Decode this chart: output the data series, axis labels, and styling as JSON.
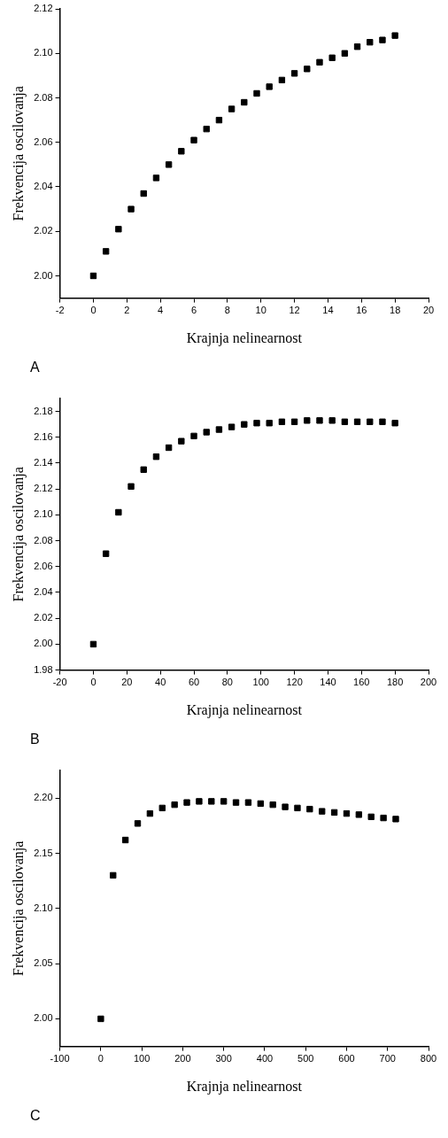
{
  "chart_data": [
    {
      "type": "scatter",
      "xlabel": "Krajnja nelinearnost",
      "ylabel": "Frekvencija oscilovanja",
      "annotations": [
        "A"
      ],
      "marker": "square",
      "grid": false,
      "x": [
        0,
        0.75,
        1.5,
        2.25,
        3,
        3.75,
        4.5,
        5.25,
        6,
        6.75,
        7.5,
        8.25,
        9,
        9.75,
        10.5,
        11.25,
        12,
        12.75,
        13.5,
        14.25,
        15,
        15.75,
        16.5,
        17.25,
        18
      ],
      "series": [
        {
          "color": "#000000",
          "values": [
            2.0,
            2.011,
            2.021,
            2.03,
            2.037,
            2.044,
            2.05,
            2.056,
            2.061,
            2.066,
            2.07,
            2.075,
            2.078,
            2.082,
            2.085,
            2.088,
            2.091,
            2.093,
            2.096,
            2.098,
            2.1,
            2.103,
            2.105,
            2.106,
            2.108
          ]
        }
      ],
      "xlim": [
        -2,
        20
      ],
      "xticks": [
        -2,
        0,
        2,
        4,
        6,
        8,
        10,
        12,
        14,
        16,
        18,
        20
      ],
      "ylim": [
        1.99,
        2.12
      ],
      "yticks": [
        {
          "value": 2,
          "label": "2.00"
        },
        2.02,
        2.04,
        2.06,
        2.08,
        {
          "value": 2.1,
          "label": "2.10"
        },
        2.12
      ]
    },
    {
      "type": "scatter",
      "xlabel": "Krajnja nelinearnost",
      "ylabel": "Frekvencija oscilovanja",
      "annotations": [
        "B"
      ],
      "marker": "square",
      "grid": false,
      "x": [
        0,
        7.5,
        15,
        22.5,
        30,
        37.5,
        45,
        52.5,
        60,
        67.5,
        75,
        82.5,
        90,
        97.5,
        105,
        112.5,
        120,
        127.5,
        135,
        142.5,
        150,
        157.5,
        165,
        172.5,
        180
      ],
      "series": [
        {
          "color": "#000000",
          "values": [
            2.0,
            2.07,
            2.102,
            2.122,
            2.135,
            2.145,
            2.152,
            2.157,
            2.161,
            2.164,
            2.166,
            2.168,
            2.17,
            2.171,
            2.171,
            2.172,
            2.172,
            2.173,
            2.173,
            2.173,
            2.172,
            2.172,
            2.172,
            2.172,
            2.171
          ]
        }
      ],
      "xlim": [
        -20,
        200
      ],
      "xticks": [
        -20,
        0,
        20,
        40,
        60,
        80,
        100,
        120,
        140,
        160,
        180,
        200
      ],
      "ylim": [
        1.98,
        2.19
      ],
      "yticks": [
        1.98,
        {
          "value": 2,
          "label": "2.00"
        },
        2.02,
        2.04,
        2.06,
        2.08,
        {
          "value": 2.1,
          "label": "2.10"
        },
        2.12,
        2.14,
        2.16,
        2.18
      ]
    },
    {
      "type": "scatter",
      "xlabel": "Krajnja nelinearnost",
      "ylabel": "Frekvencija oscilovanja",
      "annotations": [
        "C"
      ],
      "marker": "square",
      "grid": false,
      "x": [
        0,
        30,
        60,
        90,
        120,
        150,
        180,
        210,
        240,
        270,
        300,
        330,
        360,
        390,
        420,
        450,
        480,
        510,
        540,
        570,
        600,
        630,
        660,
        690,
        720
      ],
      "series": [
        {
          "color": "#000000",
          "values": [
            2.0,
            2.13,
            2.162,
            2.177,
            2.186,
            2.191,
            2.194,
            2.196,
            2.197,
            2.197,
            2.197,
            2.196,
            2.196,
            2.195,
            2.194,
            2.192,
            2.191,
            2.19,
            2.188,
            2.187,
            2.186,
            2.185,
            2.183,
            2.182,
            2.181
          ]
        }
      ],
      "xlim": [
        -100,
        800
      ],
      "xticks": [
        -100,
        0,
        100,
        200,
        300,
        400,
        500,
        600,
        700,
        800
      ],
      "ylim": [
        1.975,
        2.225
      ],
      "yticks": [
        {
          "value": 2,
          "label": "2.00"
        },
        2.05,
        {
          "value": 2.1,
          "label": "2.10"
        },
        2.15,
        {
          "value": 2.2,
          "label": "2.20"
        }
      ]
    }
  ]
}
